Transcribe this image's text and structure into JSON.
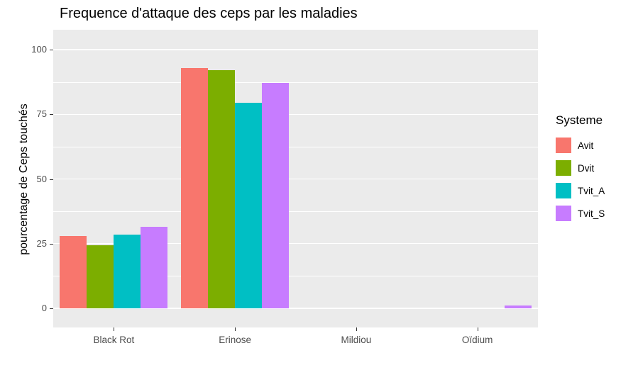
{
  "chart_data": {
    "type": "bar",
    "title": "Frequence d'attaque des ceps par les maladies",
    "xlabel": "",
    "ylabel": "pourcentage de Ceps touchés",
    "categories": [
      "Black Rot",
      "Erinose",
      "Mildiou",
      "Oïdium"
    ],
    "series": [
      {
        "name": "Avit",
        "color": "#F8766D",
        "values": [
          28,
          93,
          0,
          0
        ]
      },
      {
        "name": "Dvit",
        "color": "#7CAE00",
        "values": [
          24.5,
          92,
          0,
          0
        ]
      },
      {
        "name": "Tvit_A",
        "color": "#00BFC4",
        "values": [
          28.5,
          79.5,
          0,
          0
        ]
      },
      {
        "name": "Tvit_S",
        "color": "#C77CFF",
        "values": [
          31.5,
          87,
          0,
          1.2
        ]
      }
    ],
    "y_ticks": [
      0,
      25,
      50,
      75,
      100
    ],
    "ylim": [
      0,
      100
    ],
    "grid": true,
    "legend_title": "Systeme",
    "legend_position": "right",
    "panel_background": "#EBEBEB",
    "grid_color": "#FFFFFF"
  }
}
